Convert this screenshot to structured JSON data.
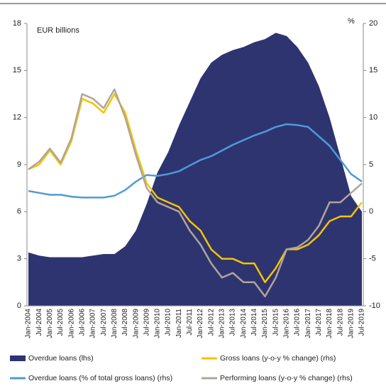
{
  "chart_data": {
    "type": "area",
    "annotations": [
      "EUR billions",
      "%"
    ],
    "categories": [
      "Jan-2004",
      "Jul-2004",
      "Jan-2005",
      "Jul-2005",
      "Jan-2006",
      "Jul-2006",
      "Jan-2007",
      "Jul-2007",
      "Jan-2008",
      "Jul-2008",
      "Jan-2009",
      "Jul-2009",
      "Jan-2010",
      "Jul-2010",
      "Jan-2011",
      "Jul-2011",
      "Jan-2012",
      "Jul-2012",
      "Jan-2013",
      "Jul-2013",
      "Jan-2014",
      "Jul-2014",
      "Jan-2015",
      "Jul-2015",
      "Jan-2016",
      "Jul-2016",
      "Jan-2017",
      "Jul-2017",
      "Jan-2018",
      "Jul-2018",
      "Jan-2019",
      "Jul-2019"
    ],
    "ylim": [
      0,
      18
    ],
    "yticks": [
      0,
      3,
      6,
      9,
      12,
      15,
      18
    ],
    "y2lim": [
      -10,
      20
    ],
    "y2ticks": [
      -10,
      -5,
      0,
      5,
      10,
      15,
      20
    ],
    "series": [
      {
        "name": "Overdue loans (lhs)",
        "type": "area",
        "color": "#2e3470",
        "values": [
          3.4,
          3.2,
          3.1,
          3.1,
          3.1,
          3.1,
          3.2,
          3.3,
          3.3,
          3.8,
          4.8,
          6.5,
          8.5,
          9.8,
          11.5,
          13.0,
          14.5,
          15.5,
          16.0,
          16.3,
          16.5,
          16.8,
          17.0,
          17.4,
          17.2,
          16.5,
          15.5,
          14.0,
          12.0,
          9.5,
          7.0,
          6.0
        ]
      },
      {
        "name": "Gross loans (y-o-y % change) (rhs)",
        "type": "line",
        "axis": "y2",
        "color": "#f5c400",
        "values": [
          4.5,
          5.0,
          6.5,
          5.0,
          7.5,
          12,
          11.5,
          10.5,
          12.5,
          10.5,
          6.5,
          3.0,
          1.5,
          1.0,
          0.5,
          -1.0,
          -2.0,
          -4.0,
          -5.0,
          -5.0,
          -5.5,
          -5.5,
          -7.5,
          -6.0,
          -4.0,
          -4.0,
          -3.5,
          -2.5,
          -1.0,
          -0.5,
          -0.5,
          1.0
        ]
      },
      {
        "name": "Overdue loans (% of total gross loans) (rhs)",
        "type": "line",
        "axis": "y2",
        "color": "#4f9bd6",
        "values": [
          2.2,
          2.0,
          1.8,
          1.8,
          1.6,
          1.5,
          1.5,
          1.5,
          1.7,
          2.3,
          3.2,
          3.9,
          3.8,
          4.0,
          4.3,
          4.9,
          5.5,
          5.9,
          6.5,
          7.1,
          7.6,
          8.1,
          8.5,
          9.0,
          9.3,
          9.2,
          9.0,
          8.0,
          7.0,
          5.5,
          4.0,
          3.2
        ]
      },
      {
        "name": "Performing loans (y-o-y % change) (rhs)",
        "type": "line",
        "axis": "y2",
        "color": "#b0a49a",
        "values": [
          4.5,
          5.3,
          6.7,
          5.2,
          7.8,
          12.5,
          12,
          11,
          13,
          10,
          6,
          2.5,
          1,
          0.5,
          0,
          -2.0,
          -3.5,
          -5.5,
          -7.0,
          -6.5,
          -7.5,
          -7.5,
          -9.0,
          -7.0,
          -4.0,
          -3.8,
          -3.0,
          -1.5,
          1.0,
          1.0,
          2.0,
          3.0
        ]
      }
    ]
  }
}
